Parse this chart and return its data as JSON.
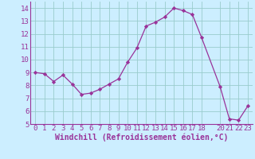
{
  "x": [
    0,
    1,
    2,
    3,
    4,
    5,
    6,
    7,
    8,
    9,
    10,
    11,
    12,
    13,
    14,
    15,
    16,
    17,
    18,
    20,
    21,
    22,
    23
  ],
  "y": [
    9.0,
    8.9,
    8.3,
    8.8,
    8.1,
    7.3,
    7.4,
    7.7,
    8.1,
    8.5,
    9.8,
    10.9,
    12.6,
    12.9,
    13.3,
    14.0,
    13.8,
    13.5,
    11.7,
    7.9,
    5.4,
    5.3,
    6.4
  ],
  "line_color": "#993399",
  "marker_color": "#993399",
  "bg_color": "#cceeff",
  "grid_color": "#99cccc",
  "xlabel": "Windchill (Refroidissement éolien,°C)",
  "xlim": [
    -0.5,
    23.5
  ],
  "ylim": [
    5,
    14.5
  ],
  "yticks": [
    5,
    6,
    7,
    8,
    9,
    10,
    11,
    12,
    13,
    14
  ],
  "xticks": [
    0,
    1,
    2,
    3,
    4,
    5,
    6,
    7,
    8,
    9,
    10,
    11,
    12,
    13,
    14,
    15,
    16,
    17,
    18,
    20,
    21,
    22,
    23
  ],
  "tick_label_color": "#993399",
  "xlabel_color": "#993399",
  "xlabel_fontsize": 7.0,
  "tick_fontsize": 6.5
}
